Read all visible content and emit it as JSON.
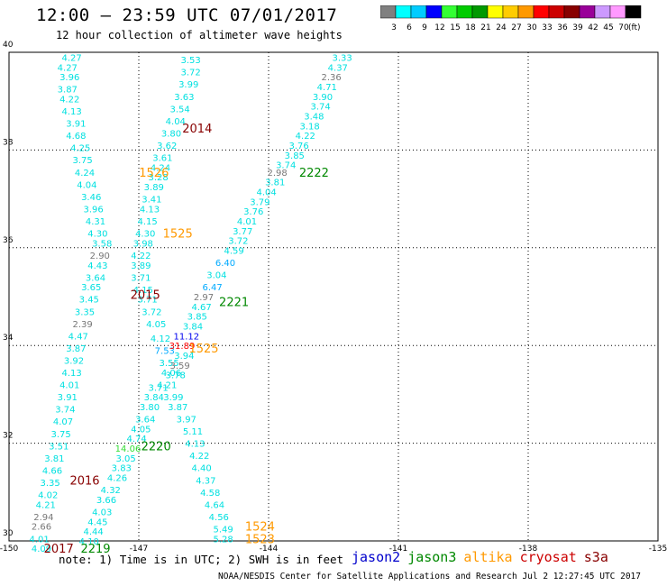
{
  "title": "12:00 – 23:59 UTC 07/01/2017",
  "subtitle": "12 hour collection of altimeter wave heights",
  "note": "note: 1) Time is in UTC; 2) SWH is in feet",
  "credit": "NOAA/NESDIS Center for Satellite Applications and Research   Jul  2 12:27:45 UTC 2017",
  "satellites": [
    {
      "name": "jason2",
      "color": "#0000cc"
    },
    {
      "name": "jason3",
      "color": "#008800"
    },
    {
      "name": "altika",
      "color": "#ff9900"
    },
    {
      "name": "cryosat",
      "color": "#cc0000"
    },
    {
      "name": "s3a",
      "color": "#880000"
    }
  ],
  "colorbar": {
    "unit": "(ft)",
    "levels": [
      {
        "label": "3",
        "color": "#808080"
      },
      {
        "label": "6",
        "color": "#00ffff"
      },
      {
        "label": "9",
        "color": "#00ccff"
      },
      {
        "label": "12",
        "color": "#0000ff"
      },
      {
        "label": "15",
        "color": "#33ff33"
      },
      {
        "label": "18",
        "color": "#00cc00"
      },
      {
        "label": "21",
        "color": "#009900"
      },
      {
        "label": "24",
        "color": "#ffff00"
      },
      {
        "label": "27",
        "color": "#ffcc00"
      },
      {
        "label": "30",
        "color": "#ff9900"
      },
      {
        "label": "33",
        "color": "#ff0000"
      },
      {
        "label": "36",
        "color": "#cc0000"
      },
      {
        "label": "39",
        "color": "#880000"
      },
      {
        "label": "42",
        "color": "#990099"
      },
      {
        "label": "45",
        "color": "#cc99ff"
      },
      {
        "label": "70",
        "color": "#ff99ff"
      },
      {
        "label": "",
        "color": "#000000"
      }
    ]
  },
  "chart_data": {
    "type": "scatter",
    "xlim": [
      -150,
      -135
    ],
    "ylim": [
      30,
      40
    ],
    "xticks": [
      "-150",
      "-147",
      "-144",
      "-141",
      "-138",
      "-135"
    ],
    "yticks": [
      "30",
      "32",
      "34",
      "36",
      "38",
      "40"
    ],
    "grid": true,
    "points": [
      {
        "x": -148.55,
        "y": 39.9,
        "label": "4.27",
        "color": "#00e0e0"
      },
      {
        "x": -148.65,
        "y": 39.7,
        "label": "4.27",
        "color": "#00e0e0"
      },
      {
        "x": -148.6,
        "y": 39.5,
        "label": "3.96",
        "color": "#00e0e0"
      },
      {
        "x": -148.65,
        "y": 39.25,
        "label": "3.87",
        "color": "#00e0e0"
      },
      {
        "x": -148.6,
        "y": 39.05,
        "label": "4.22",
        "color": "#00e0e0"
      },
      {
        "x": -148.55,
        "y": 38.8,
        "label": "4.13",
        "color": "#00e0e0"
      },
      {
        "x": -148.45,
        "y": 38.55,
        "label": "3.91",
        "color": "#00e0e0"
      },
      {
        "x": -148.45,
        "y": 38.3,
        "label": "4.68",
        "color": "#00e0e0"
      },
      {
        "x": -148.35,
        "y": 38.05,
        "label": "4.25",
        "color": "#00e0e0"
      },
      {
        "x": -148.3,
        "y": 37.8,
        "label": "3.75",
        "color": "#00e0e0"
      },
      {
        "x": -148.25,
        "y": 37.55,
        "label": "4.24",
        "color": "#00e0e0"
      },
      {
        "x": -148.2,
        "y": 37.3,
        "label": "4.04",
        "color": "#00e0e0"
      },
      {
        "x": -148.1,
        "y": 37.05,
        "label": "3.46",
        "color": "#00e0e0"
      },
      {
        "x": -148.05,
        "y": 36.8,
        "label": "3.96",
        "color": "#00e0e0"
      },
      {
        "x": -148.0,
        "y": 36.55,
        "label": "4.31",
        "color": "#00e0e0"
      },
      {
        "x": -147.95,
        "y": 36.3,
        "label": "4.30",
        "color": "#00e0e0"
      },
      {
        "x": -147.85,
        "y": 36.1,
        "label": "3.58",
        "color": "#00e0e0"
      },
      {
        "x": -147.9,
        "y": 35.85,
        "label": "2.90",
        "color": "#777777"
      },
      {
        "x": -147.95,
        "y": 35.65,
        "label": "4.43",
        "color": "#00e0e0"
      },
      {
        "x": -148.0,
        "y": 35.4,
        "label": "3.64",
        "color": "#00e0e0"
      },
      {
        "x": -148.1,
        "y": 35.2,
        "label": "3.65",
        "color": "#00e0e0"
      },
      {
        "x": -148.15,
        "y": 34.95,
        "label": "3.45",
        "color": "#00e0e0"
      },
      {
        "x": -148.25,
        "y": 34.7,
        "label": "3.35",
        "color": "#00e0e0"
      },
      {
        "x": -148.3,
        "y": 34.45,
        "label": "2.39",
        "color": "#777777"
      },
      {
        "x": -148.4,
        "y": 34.2,
        "label": "4.47",
        "color": "#00e0e0"
      },
      {
        "x": -148.45,
        "y": 33.95,
        "label": "3.87",
        "color": "#00e0e0"
      },
      {
        "x": -148.5,
        "y": 33.7,
        "label": "3.92",
        "color": "#00e0e0"
      },
      {
        "x": -148.55,
        "y": 33.45,
        "label": "4.13",
        "color": "#00e0e0"
      },
      {
        "x": -148.6,
        "y": 33.2,
        "label": "4.01",
        "color": "#00e0e0"
      },
      {
        "x": -148.65,
        "y": 32.95,
        "label": "3.91",
        "color": "#00e0e0"
      },
      {
        "x": -148.7,
        "y": 32.7,
        "label": "3.74",
        "color": "#00e0e0"
      },
      {
        "x": -148.75,
        "y": 32.45,
        "label": "4.07",
        "color": "#00e0e0"
      },
      {
        "x": -148.8,
        "y": 32.2,
        "label": "3.75",
        "color": "#00e0e0"
      },
      {
        "x": -148.85,
        "y": 31.95,
        "label": "3.51",
        "color": "#00e0e0"
      },
      {
        "x": -148.95,
        "y": 31.7,
        "label": "3.81",
        "color": "#00e0e0"
      },
      {
        "x": -149.0,
        "y": 31.45,
        "label": "4.66",
        "color": "#00e0e0"
      },
      {
        "x": -149.05,
        "y": 31.2,
        "label": "3.35",
        "color": "#00e0e0"
      },
      {
        "x": -149.1,
        "y": 30.95,
        "label": "4.02",
        "color": "#00e0e0"
      },
      {
        "x": -149.15,
        "y": 30.75,
        "label": "4.21",
        "color": "#00e0e0"
      },
      {
        "x": -149.2,
        "y": 30.5,
        "label": "2.94",
        "color": "#777777"
      },
      {
        "x": -149.25,
        "y": 30.3,
        "label": "2.66",
        "color": "#777777"
      },
      {
        "x": -149.3,
        "y": 30.05,
        "label": "4.01",
        "color": "#00e0e0"
      },
      {
        "x": -149.25,
        "y": 29.85,
        "label": "4.09",
        "color": "#00e0e0"
      },
      {
        "x": -145.8,
        "y": 39.85,
        "label": "3.53",
        "color": "#00e0e0"
      },
      {
        "x": -145.8,
        "y": 39.6,
        "label": "3.72",
        "color": "#00e0e0"
      },
      {
        "x": -145.85,
        "y": 39.35,
        "label": "3.99",
        "color": "#00e0e0"
      },
      {
        "x": -145.95,
        "y": 39.1,
        "label": "3.63",
        "color": "#00e0e0"
      },
      {
        "x": -146.05,
        "y": 38.85,
        "label": "3.54",
        "color": "#00e0e0"
      },
      {
        "x": -146.15,
        "y": 38.6,
        "label": "4.04",
        "color": "#00e0e0"
      },
      {
        "x": -146.25,
        "y": 38.35,
        "label": "3.80",
        "color": "#00e0e0"
      },
      {
        "x": -146.35,
        "y": 38.1,
        "label": "3.62",
        "color": "#00e0e0"
      },
      {
        "x": -146.45,
        "y": 37.85,
        "label": "3.61",
        "color": "#00e0e0"
      },
      {
        "x": -146.5,
        "y": 37.65,
        "label": "4.24",
        "color": "#00e0e0"
      },
      {
        "x": -146.55,
        "y": 37.45,
        "label": "3.28",
        "color": "#00e0e0"
      },
      {
        "x": -146.65,
        "y": 37.25,
        "label": "3.89",
        "color": "#00e0e0"
      },
      {
        "x": -146.7,
        "y": 37.0,
        "label": "3.41",
        "color": "#00e0e0"
      },
      {
        "x": -146.75,
        "y": 36.8,
        "label": "4.13",
        "color": "#00e0e0"
      },
      {
        "x": -146.8,
        "y": 36.55,
        "label": "4.15",
        "color": "#00e0e0"
      },
      {
        "x": -146.85,
        "y": 36.3,
        "label": "4.30",
        "color": "#00e0e0"
      },
      {
        "x": -146.9,
        "y": 36.1,
        "label": "3.98",
        "color": "#00e0e0"
      },
      {
        "x": -146.95,
        "y": 35.85,
        "label": "4.22",
        "color": "#00e0e0"
      },
      {
        "x": -146.95,
        "y": 35.65,
        "label": "3.89",
        "color": "#00e0e0"
      },
      {
        "x": -146.95,
        "y": 35.4,
        "label": "3.71",
        "color": "#00e0e0"
      },
      {
        "x": -146.9,
        "y": 35.15,
        "label": "4.15",
        "color": "#00e0e0"
      },
      {
        "x": -146.8,
        "y": 34.95,
        "label": "3.71",
        "color": "#00e0e0"
      },
      {
        "x": -146.7,
        "y": 34.7,
        "label": "3.72",
        "color": "#00e0e0"
      },
      {
        "x": -146.6,
        "y": 34.45,
        "label": "4.05",
        "color": "#00e0e0"
      },
      {
        "x": -146.5,
        "y": 34.15,
        "label": "4.12",
        "color": "#00e0e0"
      },
      {
        "x": -146.4,
        "y": 33.9,
        "label": "7.53",
        "color": "#00aaff"
      },
      {
        "x": -146.3,
        "y": 33.65,
        "label": "3.55",
        "color": "#00e0e0"
      },
      {
        "x": -146.25,
        "y": 33.45,
        "label": "4.06",
        "color": "#00e0e0"
      },
      {
        "x": -146.55,
        "y": 33.15,
        "label": "3.71",
        "color": "#00e0e0"
      },
      {
        "x": -146.65,
        "y": 32.95,
        "label": "3.84",
        "color": "#00e0e0"
      },
      {
        "x": -146.75,
        "y": 32.75,
        "label": "3.80",
        "color": "#00e0e0"
      },
      {
        "x": -146.85,
        "y": 32.5,
        "label": "3.64",
        "color": "#00e0e0"
      },
      {
        "x": -146.95,
        "y": 32.3,
        "label": "4.05",
        "color": "#00e0e0"
      },
      {
        "x": -147.05,
        "y": 32.1,
        "label": "4.74",
        "color": "#00e0e0"
      },
      {
        "x": -147.25,
        "y": 31.9,
        "label": "14.06",
        "color": "#33dd33"
      },
      {
        "x": -147.3,
        "y": 31.7,
        "label": "3.05",
        "color": "#00e0e0"
      },
      {
        "x": -147.4,
        "y": 31.5,
        "label": "3.83",
        "color": "#00e0e0"
      },
      {
        "x": -147.5,
        "y": 31.3,
        "label": "4.26",
        "color": "#00e0e0"
      },
      {
        "x": -147.65,
        "y": 31.05,
        "label": "4.32",
        "color": "#00e0e0"
      },
      {
        "x": -147.75,
        "y": 30.85,
        "label": "3.66",
        "color": "#00e0e0"
      },
      {
        "x": -147.85,
        "y": 30.6,
        "label": "4.03",
        "color": "#00e0e0"
      },
      {
        "x": -147.95,
        "y": 30.4,
        "label": "4.45",
        "color": "#00e0e0"
      },
      {
        "x": -148.05,
        "y": 30.2,
        "label": "4.44",
        "color": "#00e0e0"
      },
      {
        "x": -148.15,
        "y": 30.0,
        "label": "4.10",
        "color": "#00e0e0"
      },
      {
        "x": -142.3,
        "y": 39.9,
        "label": "3.33",
        "color": "#00e0e0"
      },
      {
        "x": -142.4,
        "y": 39.7,
        "label": "4.37",
        "color": "#00e0e0"
      },
      {
        "x": -142.55,
        "y": 39.5,
        "label": "2.36",
        "color": "#777777"
      },
      {
        "x": -142.65,
        "y": 39.3,
        "label": "4.71",
        "color": "#00e0e0"
      },
      {
        "x": -142.75,
        "y": 39.1,
        "label": "3.90",
        "color": "#00e0e0"
      },
      {
        "x": -142.8,
        "y": 38.9,
        "label": "3.74",
        "color": "#00e0e0"
      },
      {
        "x": -142.95,
        "y": 38.7,
        "label": "3.48",
        "color": "#00e0e0"
      },
      {
        "x": -143.05,
        "y": 38.5,
        "label": "3.18",
        "color": "#00e0e0"
      },
      {
        "x": -143.15,
        "y": 38.3,
        "label": "4.22",
        "color": "#00e0e0"
      },
      {
        "x": -143.3,
        "y": 38.1,
        "label": "3.76",
        "color": "#00e0e0"
      },
      {
        "x": -143.4,
        "y": 37.9,
        "label": "3.85",
        "color": "#00e0e0"
      },
      {
        "x": -143.6,
        "y": 37.7,
        "label": "3.74",
        "color": "#00e0e0"
      },
      {
        "x": -143.8,
        "y": 37.55,
        "label": "2.98",
        "color": "#777777"
      },
      {
        "x": -143.85,
        "y": 37.35,
        "label": "3.81",
        "color": "#00e0e0"
      },
      {
        "x": -144.05,
        "y": 37.15,
        "label": "4.04",
        "color": "#00e0e0"
      },
      {
        "x": -144.2,
        "y": 36.95,
        "label": "3.79",
        "color": "#00e0e0"
      },
      {
        "x": -144.35,
        "y": 36.75,
        "label": "3.76",
        "color": "#00e0e0"
      },
      {
        "x": -144.5,
        "y": 36.55,
        "label": "4.01",
        "color": "#00e0e0"
      },
      {
        "x": -144.6,
        "y": 36.35,
        "label": "3.77",
        "color": "#00e0e0"
      },
      {
        "x": -144.7,
        "y": 36.15,
        "label": "3.72",
        "color": "#00e0e0"
      },
      {
        "x": -144.8,
        "y": 35.95,
        "label": "4.59",
        "color": "#00e0e0"
      },
      {
        "x": -145.0,
        "y": 35.7,
        "label": "6.40",
        "color": "#00aaff"
      },
      {
        "x": -145.2,
        "y": 35.45,
        "label": "3.04",
        "color": "#00e0e0"
      },
      {
        "x": -145.3,
        "y": 35.2,
        "label": "6.47",
        "color": "#00aaff"
      },
      {
        "x": -145.5,
        "y": 35.0,
        "label": "2.97",
        "color": "#777777"
      },
      {
        "x": -145.55,
        "y": 34.8,
        "label": "4.67",
        "color": "#00e0e0"
      },
      {
        "x": -145.65,
        "y": 34.6,
        "label": "3.85",
        "color": "#00e0e0"
      },
      {
        "x": -145.75,
        "y": 34.4,
        "label": "3.84",
        "color": "#00e0e0"
      },
      {
        "x": -145.9,
        "y": 34.2,
        "label": "11.12",
        "color": "#0000ee"
      },
      {
        "x": -146.0,
        "y": 34.0,
        "label": "31.89",
        "color": "#ff0000"
      },
      {
        "x": -145.95,
        "y": 33.8,
        "label": "3.94",
        "color": "#00e0e0"
      },
      {
        "x": -146.05,
        "y": 33.6,
        "label": "3.59",
        "color": "#777777"
      },
      {
        "x": -146.15,
        "y": 33.4,
        "label": "3.78",
        "color": "#00e0e0"
      },
      {
        "x": -146.35,
        "y": 33.2,
        "label": "4.21",
        "color": "#00e0e0"
      },
      {
        "x": -146.2,
        "y": 32.95,
        "label": "3.99",
        "color": "#00e0e0"
      },
      {
        "x": -146.1,
        "y": 32.75,
        "label": "3.87",
        "color": "#00e0e0"
      },
      {
        "x": -145.9,
        "y": 32.5,
        "label": "3.97",
        "color": "#00e0e0"
      },
      {
        "x": -145.75,
        "y": 32.25,
        "label": "5.11",
        "color": "#00e0e0"
      },
      {
        "x": -145.7,
        "y": 32.0,
        "label": "4.13",
        "color": "#00e0e0"
      },
      {
        "x": -145.6,
        "y": 31.75,
        "label": "4.22",
        "color": "#00e0e0"
      },
      {
        "x": -145.55,
        "y": 31.5,
        "label": "4.40",
        "color": "#00e0e0"
      },
      {
        "x": -145.45,
        "y": 31.25,
        "label": "4.37",
        "color": "#00e0e0"
      },
      {
        "x": -145.35,
        "y": 31.0,
        "label": "4.58",
        "color": "#00e0e0"
      },
      {
        "x": -145.25,
        "y": 30.75,
        "label": "4.64",
        "color": "#00e0e0"
      },
      {
        "x": -145.15,
        "y": 30.5,
        "label": "4.56",
        "color": "#00e0e0"
      },
      {
        "x": -145.05,
        "y": 30.25,
        "label": "5.49",
        "color": "#00e0e0"
      },
      {
        "x": -145.05,
        "y": 30.05,
        "label": "5.28",
        "color": "#00e0e0"
      }
    ],
    "passes": [
      {
        "x": -145.65,
        "y": 38.45,
        "label": "2014",
        "color": "#880000"
      },
      {
        "x": -146.65,
        "y": 37.55,
        "label": "1526",
        "color": "#ff9900"
      },
      {
        "x": -146.1,
        "y": 36.3,
        "label": "1525",
        "color": "#ff9900"
      },
      {
        "x": -142.95,
        "y": 37.55,
        "label": "2222",
        "color": "#008800"
      },
      {
        "x": -146.85,
        "y": 35.05,
        "label": "2015",
        "color": "#880000"
      },
      {
        "x": -144.8,
        "y": 34.9,
        "label": "2221",
        "color": "#008800"
      },
      {
        "x": -145.5,
        "y": 33.95,
        "label": "1525",
        "color": "#ff9900"
      },
      {
        "x": -146.6,
        "y": 31.95,
        "label": "2220",
        "color": "#008800"
      },
      {
        "x": -148.25,
        "y": 31.25,
        "label": "2016",
        "color": "#880000"
      },
      {
        "x": -148.85,
        "y": 29.85,
        "label": "2017",
        "color": "#880000"
      },
      {
        "x": -148.0,
        "y": 29.85,
        "label": "2219",
        "color": "#008800"
      },
      {
        "x": -144.2,
        "y": 30.3,
        "label": "1524",
        "color": "#ff9900"
      },
      {
        "x": -144.2,
        "y": 30.05,
        "label": "1523",
        "color": "#ff9900"
      }
    ]
  }
}
